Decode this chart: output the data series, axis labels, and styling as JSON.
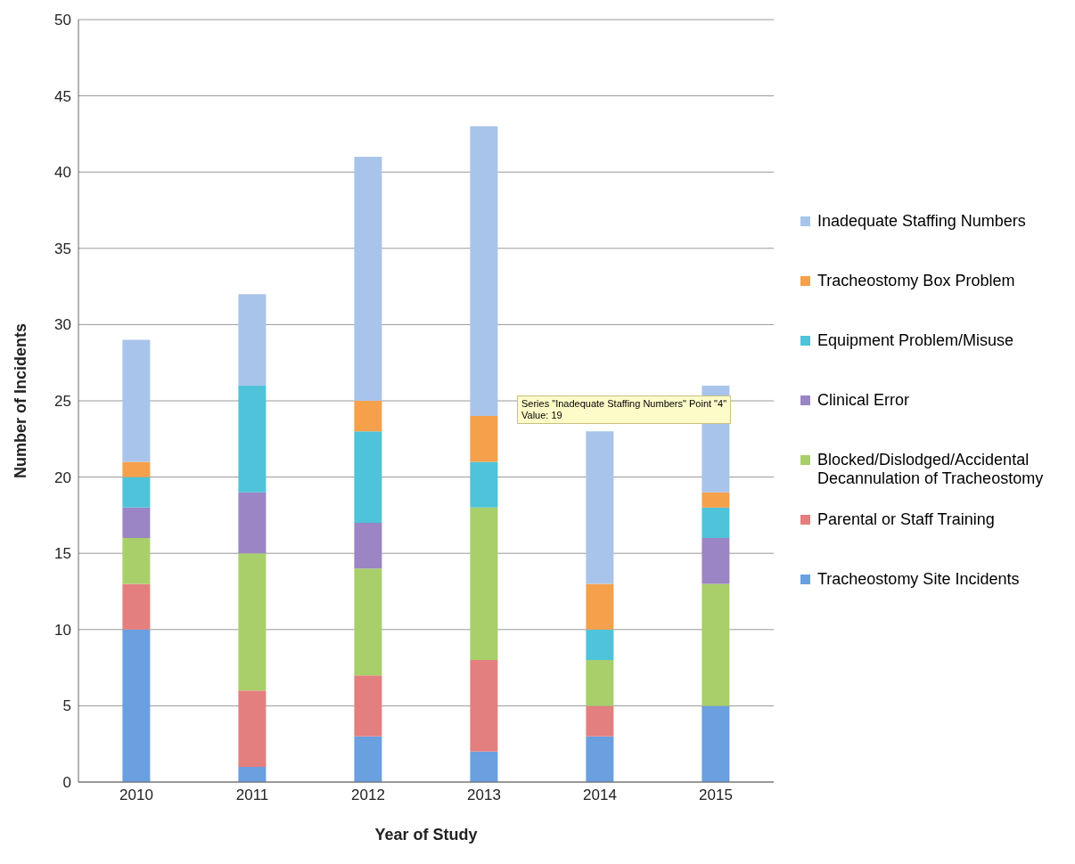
{
  "chart_data": {
    "type": "bar",
    "stacked": true,
    "xlabel": "Year of Study",
    "ylabel": "Number of Incidents",
    "categories": [
      "2010",
      "2011",
      "2012",
      "2013",
      "2014",
      "2015"
    ],
    "series": [
      {
        "name": "Tracheostomy Site Incidents",
        "color": "#6a9fe0",
        "values": [
          10,
          1,
          3,
          2,
          3,
          5
        ]
      },
      {
        "name": "Parental or Staff Training",
        "color": "#e37f7f",
        "values": [
          3,
          5,
          4,
          6,
          2,
          0
        ]
      },
      {
        "name": "Blocked/Dislodged/Accidental Decannulation of Tracheostomy",
        "color": "#a8cf6a",
        "values": [
          3,
          9,
          7,
          10,
          3,
          8
        ]
      },
      {
        "name": "Clinical Error",
        "color": "#9b85c4",
        "values": [
          2,
          4,
          3,
          0,
          0,
          3
        ]
      },
      {
        "name": "Equipment Problem/Misuse",
        "color": "#4fc3d9",
        "values": [
          2,
          7,
          6,
          3,
          2,
          2
        ]
      },
      {
        "name": "Tracheostomy Box Problem",
        "color": "#f5a04a",
        "values": [
          1,
          0,
          2,
          3,
          3,
          1
        ]
      },
      {
        "name": "Inadequate Staffing Numbers",
        "color": "#a9c4ea",
        "values": [
          8,
          6,
          16,
          19,
          10,
          7
        ]
      }
    ],
    "ylim": [
      0,
      50
    ],
    "yticks": [
      0,
      5,
      10,
      15,
      20,
      25,
      30,
      35,
      40,
      45,
      50
    ],
    "grid": "y",
    "legend": "right",
    "annotations": [
      "Series \"Inadequate Staffing Numbers\" Point \"4\"\nValue: 19"
    ]
  }
}
